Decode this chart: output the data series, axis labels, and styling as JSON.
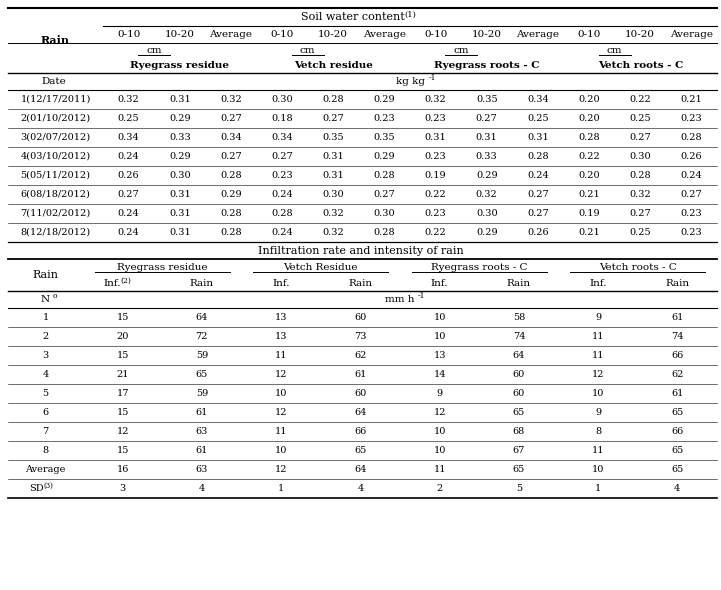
{
  "soil_water_title": "Soil water content(1)",
  "infiltration_title": "Infiltration rate and intensity of rain",
  "part1_treatments": [
    "Ryegrass residue",
    "Vetch residue",
    "Ryegrass roots - C",
    "Vetch roots - C"
  ],
  "part1_rows": [
    [
      "1(12/17/2011)",
      "0.32",
      "0.31",
      "0.32",
      "0.30",
      "0.28",
      "0.29",
      "0.32",
      "0.35",
      "0.34",
      "0.20",
      "0.22",
      "0.21"
    ],
    [
      "2(01/10/2012)",
      "0.25",
      "0.29",
      "0.27",
      "0.18",
      "0.27",
      "0.23",
      "0.23",
      "0.27",
      "0.25",
      "0.20",
      "0.25",
      "0.23"
    ],
    [
      "3(02/07/2012)",
      "0.34",
      "0.33",
      "0.34",
      "0.34",
      "0.35",
      "0.35",
      "0.31",
      "0.31",
      "0.31",
      "0.28",
      "0.27",
      "0.28"
    ],
    [
      "4(03/10/2012)",
      "0.24",
      "0.29",
      "0.27",
      "0.27",
      "0.31",
      "0.29",
      "0.23",
      "0.33",
      "0.28",
      "0.22",
      "0.30",
      "0.26"
    ],
    [
      "5(05/11/2012)",
      "0.26",
      "0.30",
      "0.28",
      "0.23",
      "0.31",
      "0.28",
      "0.19",
      "0.29",
      "0.24",
      "0.20",
      "0.28",
      "0.24"
    ],
    [
      "6(08/18/2012)",
      "0.27",
      "0.31",
      "0.29",
      "0.24",
      "0.30",
      "0.27",
      "0.22",
      "0.32",
      "0.27",
      "0.21",
      "0.32",
      "0.27"
    ],
    [
      "7(11/02/2012)",
      "0.24",
      "0.31",
      "0.28",
      "0.28",
      "0.32",
      "0.30",
      "0.23",
      "0.30",
      "0.27",
      "0.19",
      "0.27",
      "0.23"
    ],
    [
      "8(12/18/2012)",
      "0.24",
      "0.31",
      "0.28",
      "0.24",
      "0.32",
      "0.28",
      "0.22",
      "0.29",
      "0.26",
      "0.21",
      "0.25",
      "0.23"
    ]
  ],
  "part2_treatments": [
    "Ryegrass residue",
    "Vetch Residue",
    "Ryegrass roots - C",
    "Vetch roots - C"
  ],
  "part2_rows": [
    [
      "1",
      "15",
      "64",
      "13",
      "60",
      "10",
      "58",
      "9",
      "61"
    ],
    [
      "2",
      "20",
      "72",
      "13",
      "73",
      "10",
      "74",
      "11",
      "74"
    ],
    [
      "3",
      "15",
      "59",
      "11",
      "62",
      "13",
      "64",
      "11",
      "66"
    ],
    [
      "4",
      "21",
      "65",
      "12",
      "61",
      "14",
      "60",
      "12",
      "62"
    ],
    [
      "5",
      "17",
      "59",
      "10",
      "60",
      "9",
      "60",
      "10",
      "61"
    ],
    [
      "6",
      "15",
      "61",
      "12",
      "64",
      "12",
      "65",
      "9",
      "65"
    ],
    [
      "7",
      "12",
      "63",
      "11",
      "66",
      "10",
      "68",
      "8",
      "66"
    ],
    [
      "8",
      "15",
      "61",
      "10",
      "65",
      "10",
      "67",
      "11",
      "65"
    ],
    [
      "Average",
      "16",
      "63",
      "12",
      "64",
      "11",
      "65",
      "10",
      "65"
    ],
    [
      "SD(3)",
      "3",
      "4",
      "1",
      "4",
      "2",
      "5",
      "1",
      "4"
    ]
  ]
}
